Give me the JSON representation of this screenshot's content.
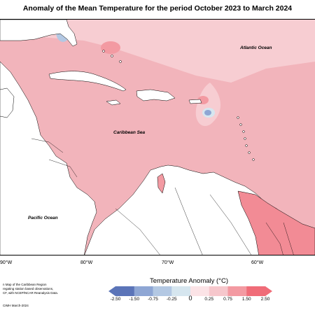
{
  "title": "Anomaly of the Mean Temperature for the period October 2023 to March 2024",
  "oceans": {
    "atlantic": "Atlantic Ocean",
    "caribbean": "Caribbean Sea",
    "pacific": "Pacific Ocean"
  },
  "longitude_ticks": [
    "90°W",
    "80°W",
    "70°W",
    "60°W"
  ],
  "footnote_lines": [
    "n Map of the Caribbean Region",
    "regating station based observations,",
    "CF, with NCEP/NCAR Reanalysis Data."
  ],
  "credit": "CIMH March-2024",
  "legend": {
    "title": "Temperature Anomaly (°C)",
    "ticks": [
      "-2.50",
      "-1.50",
      "-0.75",
      "-0.25",
      "0",
      "0.25",
      "0.75",
      "1.50",
      "2.50"
    ],
    "colors": [
      "#5b74b8",
      "#8ea6d4",
      "#b3c8e3",
      "#d6e6ef",
      "#ffffff",
      "#fbe3e6",
      "#f6c7cc",
      "#f39aa2",
      "#f06c78"
    ]
  },
  "colors": {
    "land": "#ffffff",
    "anomaly_light": "#f7cdd2",
    "anomaly_medium": "#f2b4bb",
    "anomaly_strong": "#f28b95",
    "anomaly_cold": "#8fb0d6"
  }
}
